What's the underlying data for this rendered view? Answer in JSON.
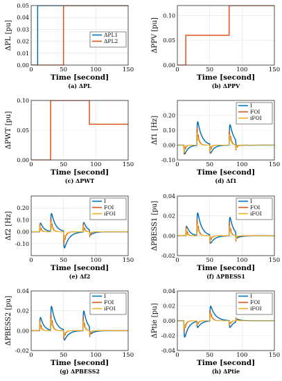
{
  "chart_data": [
    {
      "type": "line",
      "caption": "(a) ΔPL",
      "ylabel": "ΔPL [pu]",
      "xlabel": "Time [second]",
      "xlim": [
        0,
        150
      ],
      "ylim": [
        0,
        0.05
      ],
      "xticks": [
        "0",
        "50",
        "100",
        "150"
      ],
      "yticks": [
        "0.00",
        "0.01",
        "0.02",
        "0.03",
        "0.04",
        "0.05"
      ],
      "legend": {
        "position": "mid-right",
        "entries": [
          "ΔPL1",
          "ΔPL2"
        ]
      },
      "series": [
        {
          "name": "ΔPL1",
          "color": "#0072bd",
          "x": [
            0,
            10,
            10,
            150
          ],
          "y": [
            0,
            0,
            0.05,
            0.05
          ]
        },
        {
          "name": "ΔPL2",
          "color": "#d95319",
          "x": [
            0,
            50,
            50,
            150
          ],
          "y": [
            0,
            0,
            0.05,
            0.05
          ]
        }
      ]
    },
    {
      "type": "line",
      "caption": "(b) ΔPPV",
      "ylabel": "ΔPPV [pu]",
      "xlabel": "Time [second]",
      "xlim": [
        0,
        150
      ],
      "ylim": [
        0,
        0.12
      ],
      "xticks": [
        "0",
        "50",
        "100",
        "150"
      ],
      "yticks": [
        "0.00",
        "0.05",
        "0.10"
      ],
      "legend": null,
      "series": [
        {
          "name": "",
          "color": "#d95319",
          "x": [
            0,
            13,
            13,
            80,
            80,
            150
          ],
          "y": [
            0,
            0,
            0.06,
            0.06,
            0.12,
            0.12
          ]
        }
      ]
    },
    {
      "type": "line",
      "caption": "(c) ΔPWT",
      "ylabel": "ΔPWT [pu]",
      "xlabel": "Time [second]",
      "xlim": [
        0,
        150
      ],
      "ylim": [
        0,
        0.1
      ],
      "xticks": [
        "0",
        "50",
        "100",
        "150"
      ],
      "yticks": [
        "0.00",
        "0.05",
        "0.10"
      ],
      "legend": null,
      "series": [
        {
          "name": "",
          "color": "#d95319",
          "x": [
            0,
            30,
            30,
            90,
            90,
            150
          ],
          "y": [
            0,
            0,
            0.1,
            0.1,
            0.06,
            0.06
          ]
        }
      ]
    },
    {
      "type": "line",
      "caption": "(d) Δf1",
      "ylabel": "Δf1 [Hz]",
      "xlabel": "Time [second]",
      "xlim": [
        0,
        150
      ],
      "ylim": [
        -0.1,
        0.3
      ],
      "xticks": [
        "0",
        "50",
        "100",
        "150"
      ],
      "yticks": [
        "-0.10",
        "0.00",
        "0.10",
        "0.20"
      ],
      "legend": {
        "position": "top-right",
        "entries": [
          "I",
          "FOI",
          "iFOI"
        ]
      },
      "events": [
        {
          "t": 10,
          "amp": -0.09,
          "tau": 6,
          "osc": 0.05
        },
        {
          "t": 30,
          "amp": 0.23,
          "tau": 7,
          "osc": 0.06
        },
        {
          "t": 50,
          "amp": -0.09,
          "tau": 6,
          "osc": 0.04
        },
        {
          "t": 80,
          "amp": 0.2,
          "tau": 7,
          "osc": 0.05
        },
        {
          "t": 90,
          "amp": -0.05,
          "tau": 6,
          "osc": 0.03
        }
      ],
      "series": [
        {
          "name": "I",
          "color": "#0072bd"
        },
        {
          "name": "FOI",
          "color": "#d95319"
        },
        {
          "name": "iFOI",
          "color": "#edb120"
        }
      ]
    },
    {
      "type": "line",
      "caption": "(e) Δf2",
      "ylabel": "Δf2 [Hz]",
      "xlabel": "Time [second]",
      "xlim": [
        0,
        150
      ],
      "ylim": [
        -0.2,
        0.3
      ],
      "xticks": [
        "0",
        "50",
        "100",
        "150"
      ],
      "yticks": [
        "-0.10",
        "0.00",
        "0.10",
        "0.20"
      ],
      "legend": {
        "position": "top-right",
        "entries": [
          "I",
          "FOI",
          "iFOI"
        ]
      },
      "events": [
        {
          "t": 13,
          "amp": 0.11,
          "tau": 6,
          "osc": 0.05
        },
        {
          "t": 30,
          "amp": 0.22,
          "tau": 7,
          "osc": 0.06
        },
        {
          "t": 50,
          "amp": -0.2,
          "tau": 8,
          "osc": 0.05
        },
        {
          "t": 80,
          "amp": 0.12,
          "tau": 6,
          "osc": 0.05
        },
        {
          "t": 90,
          "amp": -0.06,
          "tau": 6,
          "osc": 0.03
        }
      ],
      "series": [
        {
          "name": "I",
          "color": "#0072bd"
        },
        {
          "name": "FOI",
          "color": "#d95319"
        },
        {
          "name": "iFOI",
          "color": "#edb120"
        }
      ]
    },
    {
      "type": "line",
      "caption": "(f) ΔPBESS1",
      "ylabel": "ΔPBESS1 [pu]",
      "xlabel": "Time [second]",
      "xlim": [
        0,
        150
      ],
      "ylim": [
        -0.02,
        0.04
      ],
      "xticks": [
        "0",
        "50",
        "100",
        "150"
      ],
      "yticks": [
        "-0.02",
        "0.00",
        "0.02",
        "0.04"
      ],
      "legend": {
        "position": "top-right",
        "entries": [
          "I",
          "FOI",
          "iFOI"
        ]
      },
      "events": [
        {
          "t": 13,
          "amp": 0.014,
          "tau": 6,
          "osc": 0.008
        },
        {
          "t": 30,
          "amp": 0.033,
          "tau": 7,
          "osc": 0.008
        },
        {
          "t": 50,
          "amp": -0.012,
          "tau": 7,
          "osc": 0.005
        },
        {
          "t": 80,
          "amp": 0.028,
          "tau": 6,
          "osc": 0.007
        },
        {
          "t": 90,
          "amp": -0.008,
          "tau": 6,
          "osc": 0.004
        }
      ],
      "series": [
        {
          "name": "I",
          "color": "#0072bd"
        },
        {
          "name": "FOI",
          "color": "#d95319"
        },
        {
          "name": "iFOI",
          "color": "#edb120"
        }
      ]
    },
    {
      "type": "line",
      "caption": "(g) ΔPBESS2",
      "ylabel": "ΔPBESS2 [pu]",
      "xlabel": "Time [second]",
      "xlim": [
        0,
        150
      ],
      "ylim": [
        -0.02,
        0.04
      ],
      "xticks": [
        "0",
        "50",
        "100",
        "150"
      ],
      "yticks": [
        "-0.02",
        "0.00",
        "0.02",
        "0.04"
      ],
      "legend": {
        "position": "top-right",
        "entries": [
          "I",
          "FOI",
          "iFOI"
        ]
      },
      "events": [
        {
          "t": 13,
          "amp": 0.02,
          "tau": 6,
          "osc": 0.008
        },
        {
          "t": 30,
          "amp": 0.035,
          "tau": 7,
          "osc": 0.008
        },
        {
          "t": 50,
          "amp": -0.015,
          "tau": 7,
          "osc": 0.005
        },
        {
          "t": 80,
          "amp": 0.03,
          "tau": 6,
          "osc": 0.007
        },
        {
          "t": 90,
          "amp": -0.01,
          "tau": 6,
          "osc": 0.004
        }
      ],
      "series": [
        {
          "name": "I",
          "color": "#0072bd"
        },
        {
          "name": "FOI",
          "color": "#d95319"
        },
        {
          "name": "iFOI",
          "color": "#edb120"
        }
      ]
    },
    {
      "type": "line",
      "caption": "(h) ΔPtie",
      "ylabel": "ΔPtie [pu]",
      "xlabel": "Time [second]",
      "xlim": [
        0,
        150
      ],
      "ylim": [
        -0.04,
        0.04
      ],
      "xticks": [
        "0",
        "50",
        "100",
        "150"
      ],
      "yticks": [
        "-0.04",
        "-0.02",
        "0.00",
        "0.02",
        "0.04"
      ],
      "legend": {
        "position": "top-right",
        "entries": [
          "I",
          "FOI",
          "iFOI"
        ]
      },
      "events": [
        {
          "t": 10,
          "amp": -0.032,
          "tau": 7,
          "osc": 0.007
        },
        {
          "t": 30,
          "amp": -0.012,
          "tau": 7,
          "osc": 0.004
        },
        {
          "t": 50,
          "amp": 0.028,
          "tau": 8,
          "osc": 0.006
        },
        {
          "t": 80,
          "amp": -0.014,
          "tau": 6,
          "osc": 0.004
        },
        {
          "t": 90,
          "amp": 0.006,
          "tau": 6,
          "osc": 0.003
        }
      ],
      "series": [
        {
          "name": "I",
          "color": "#0072bd"
        },
        {
          "name": "FOI",
          "color": "#d95319"
        },
        {
          "name": "iFOI",
          "color": "#edb120"
        }
      ]
    }
  ]
}
